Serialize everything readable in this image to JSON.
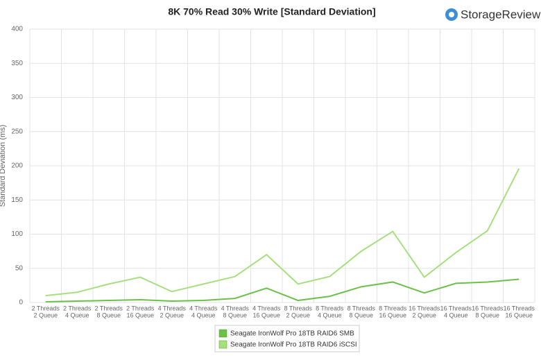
{
  "chart_data": {
    "type": "line",
    "title": "8K 70% Read 30% Write [Standard Deviation]",
    "logo": "StorageReview",
    "y_label": "Standard Deviation (ms)",
    "categories": [
      [
        "2 Threads",
        "2 Queue"
      ],
      [
        "2 Threads",
        "4 Queue"
      ],
      [
        "2 Threads",
        "8 Queue"
      ],
      [
        "2 Threads",
        "16 Queue"
      ],
      [
        "4 Threads",
        "2 Queue"
      ],
      [
        "4 Threads",
        "4 Queue"
      ],
      [
        "4 Threads",
        "8 Queue"
      ],
      [
        "4 Threads",
        "16 Queue"
      ],
      [
        "8 Threads",
        "2 Queue"
      ],
      [
        "8 Threads",
        "4 Queue"
      ],
      [
        "8 Threads",
        "8 Queue"
      ],
      [
        "8 Threads",
        "16 Queue"
      ],
      [
        "16 Threads",
        "2 Queue"
      ],
      [
        "16 Threads",
        "4 Queue"
      ],
      [
        "16 Threads",
        "8 Queue"
      ],
      [
        "16 Threads",
        "16 Queue"
      ]
    ],
    "series": [
      {
        "name": "Seagate IronWolf Pro 18TB RAID6 SMB",
        "color": "#6cc04a",
        "values": [
          1,
          2,
          3,
          4,
          2,
          3,
          6,
          21,
          3,
          9,
          23,
          30,
          14,
          28,
          30,
          34
        ]
      },
      {
        "name": "Seagate IronWolf Pro 18TB RAID6 iSCSI",
        "color": "#a6e07e",
        "values": [
          10,
          15,
          27,
          37,
          16,
          27,
          38,
          70,
          27,
          38,
          75,
          104,
          37,
          73,
          105,
          196
        ]
      }
    ],
    "ylim": [
      0,
      400
    ],
    "yticks": [
      0,
      50,
      100,
      150,
      200,
      250,
      300,
      350,
      400
    ],
    "grid": true
  }
}
